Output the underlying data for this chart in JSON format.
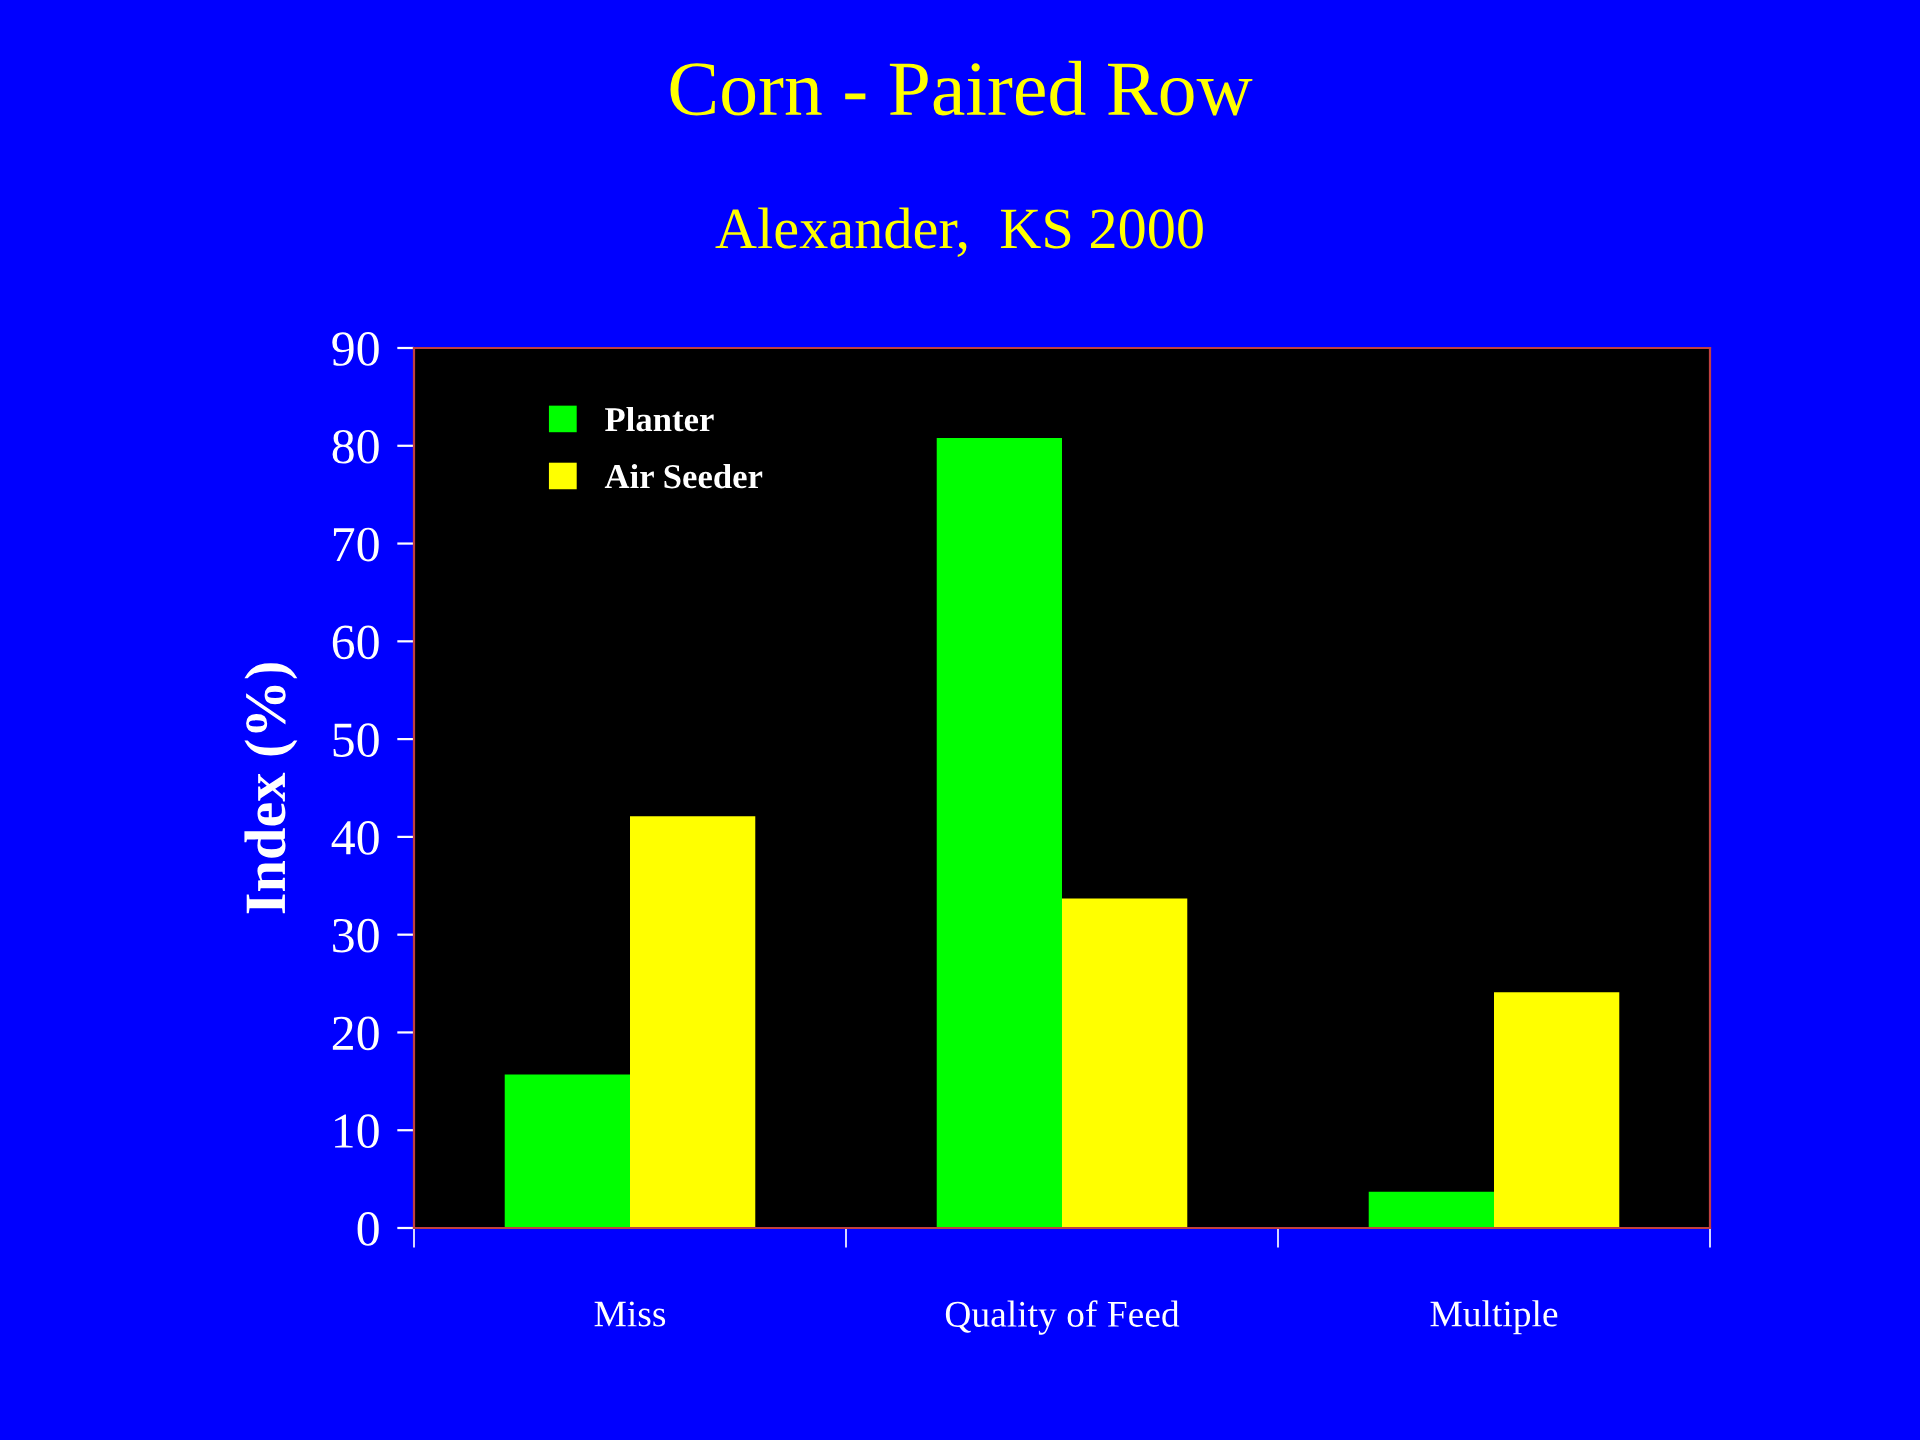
{
  "chart_data": {
    "type": "bar",
    "title": "Corn - Paired Row",
    "subtitle": "Alexander,  KS 2000",
    "ylabel": "Index (%)",
    "categories": [
      "Miss",
      "Quality of Feed",
      "Multiple"
    ],
    "series": [
      {
        "name": "Planter",
        "color": "#00ff00",
        "values": [
          15.7,
          80.8,
          3.7
        ]
      },
      {
        "name": "Air Seeder",
        "color": "#ffff00",
        "values": [
          42.1,
          33.7,
          24.1
        ]
      }
    ],
    "ylim": [
      0,
      90
    ],
    "yticks": [
      0,
      10,
      20,
      30,
      40,
      50,
      60,
      70,
      80,
      90
    ],
    "grid": false,
    "legend": "top left"
  }
}
